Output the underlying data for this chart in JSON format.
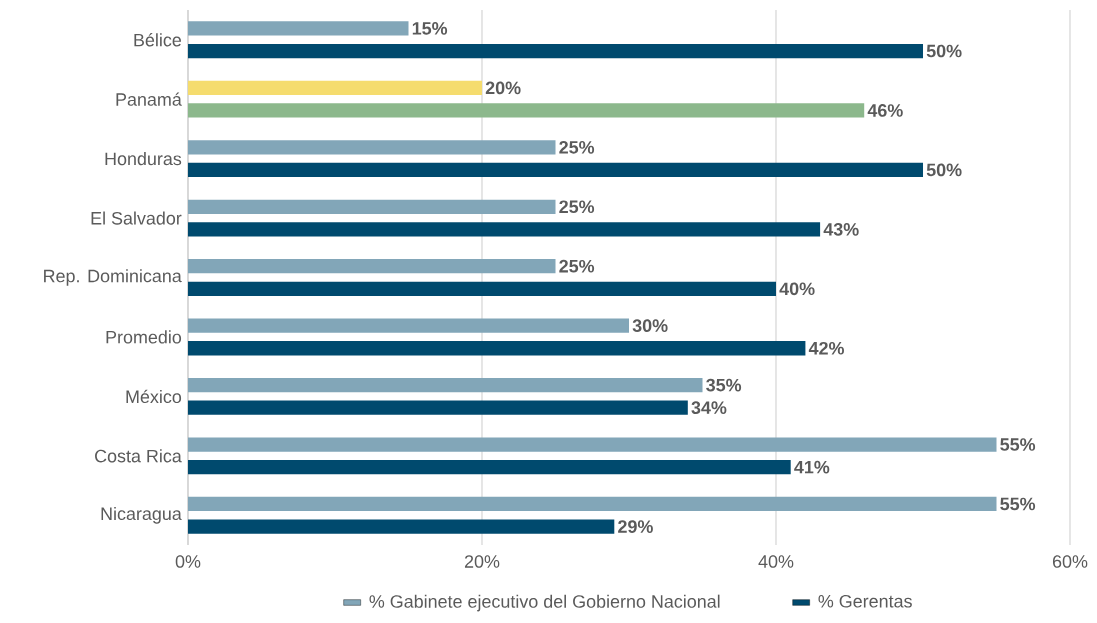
{
  "chart_data": {
    "type": "bar",
    "orientation": "horizontal",
    "categories": [
      "Bélice",
      "Panamá",
      "Honduras",
      "El Salvador",
      "Rep. Dominicana",
      "Promedio",
      "México",
      "Costa Rica",
      "Nicaragua"
    ],
    "series": [
      {
        "name": "% Gabinete ejecutivo del Gobierno Nacional",
        "color": "#82a6b8",
        "colors": [
          "#82a6b8",
          "#f5dc6e",
          "#82a6b8",
          "#82a6b8",
          "#82a6b8",
          "#82a6b8",
          "#82a6b8",
          "#82a6b8",
          "#82a6b8"
        ],
        "values": [
          15,
          20,
          25,
          25,
          25,
          30,
          35,
          55,
          55
        ],
        "value_labels": [
          "15%",
          "20%",
          "25%",
          "25%",
          "25%",
          "30%",
          "35%",
          "55%",
          "55%"
        ]
      },
      {
        "name": "% Gerentas",
        "color": "#004a6e",
        "colors": [
          "#004a6e",
          "#8cb88c",
          "#004a6e",
          "#004a6e",
          "#004a6e",
          "#004a6e",
          "#004a6e",
          "#004a6e",
          "#004a6e"
        ],
        "values": [
          50,
          46,
          50,
          43,
          40,
          42,
          34,
          41,
          29
        ],
        "value_labels": [
          "50%",
          "46%",
          "50%",
          "43%",
          "40%",
          "42%",
          "34%",
          "41%",
          "29%"
        ]
      }
    ],
    "xlim": [
      0,
      60
    ],
    "xticks": [
      {
        "value": 0,
        "label": "0%"
      },
      {
        "value": 20,
        "label": "20%"
      },
      {
        "value": 40,
        "label": "40%"
      },
      {
        "value": 60,
        "label": "60%"
      }
    ],
    "grid": "x",
    "legend": "bottom"
  }
}
